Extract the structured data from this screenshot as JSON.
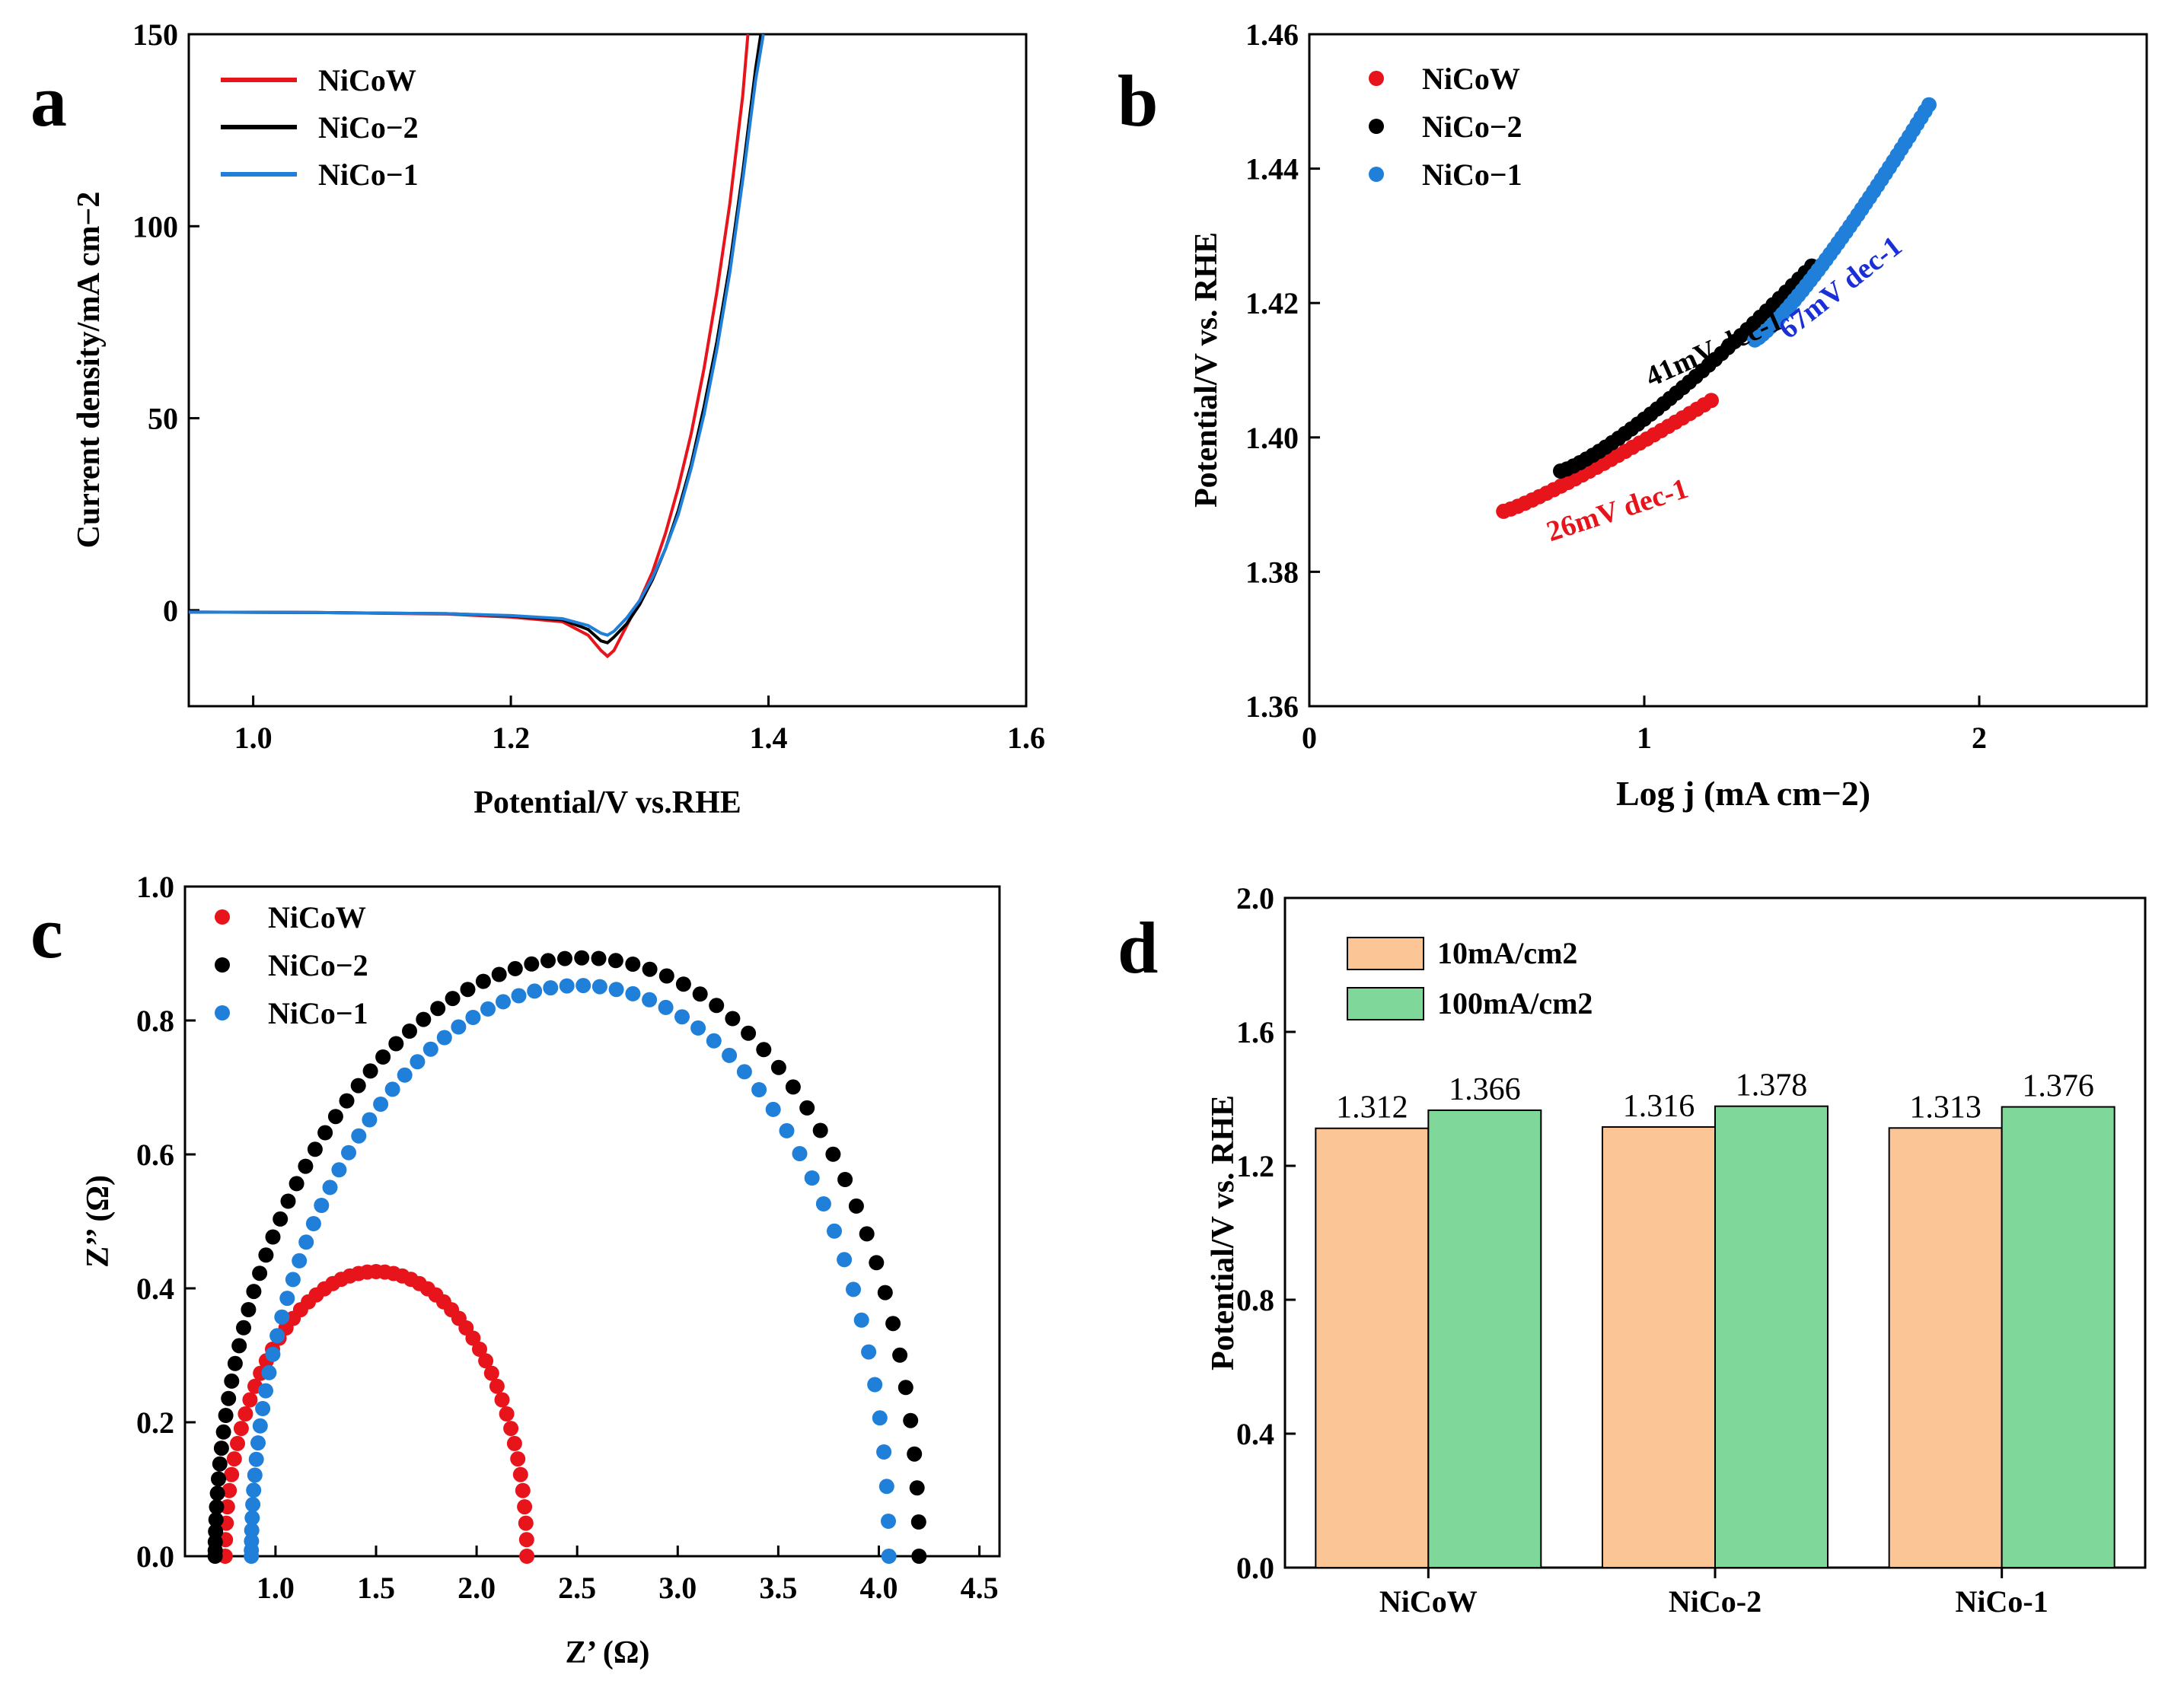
{
  "panels": {
    "a": {
      "letter": "a"
    },
    "b": {
      "letter": "b"
    },
    "c": {
      "letter": "c"
    },
    "d": {
      "letter": "d"
    }
  },
  "colors": {
    "NiCoW": "#e8141b",
    "NiCo2": "#000000",
    "NiCo1": "#1f7fd9",
    "annot_blue": "#1a2fd6",
    "bar10": "#fbc595",
    "bar100": "#80d79a"
  },
  "chart_data": [
    {
      "id": "a",
      "type": "line",
      "title": "",
      "xlabel": "Potential/V vs.RHE",
      "ylabel": "Current density/mA cm−2",
      "xlim": [
        0.95,
        1.6
      ],
      "ylim": [
        -25,
        150
      ],
      "xticks": [
        "1.0",
        "1.2",
        "1.4",
        "1.6"
      ],
      "xtick_values": [
        1.0,
        1.2,
        1.4,
        1.6
      ],
      "yticks": [
        "0",
        "50",
        "100",
        "150"
      ],
      "ytick_values": [
        0,
        50,
        100,
        150
      ],
      "legend_position": "top-left",
      "series": [
        {
          "name": "NiCoW",
          "color_key": "NiCoW",
          "x": [
            0.95,
            1.05,
            1.15,
            1.2,
            1.24,
            1.26,
            1.27,
            1.275,
            1.28,
            1.29,
            1.3,
            1.31,
            1.32,
            1.33,
            1.34,
            1.35,
            1.36,
            1.37,
            1.38,
            1.384
          ],
          "y": [
            -0.5,
            -0.6,
            -1.0,
            -1.8,
            -3.0,
            -6.5,
            -10.5,
            -12.0,
            -10.5,
            -4.0,
            2.5,
            10.0,
            20.0,
            32.0,
            46.0,
            63.0,
            83.0,
            106.0,
            134.0,
            150.0
          ]
        },
        {
          "name": "NiCo−2",
          "color_key": "NiCo2",
          "x": [
            0.95,
            1.05,
            1.15,
            1.2,
            1.24,
            1.26,
            1.27,
            1.275,
            1.28,
            1.29,
            1.3,
            1.31,
            1.32,
            1.33,
            1.34,
            1.35,
            1.36,
            1.37,
            1.38,
            1.39,
            1.394
          ],
          "y": [
            -0.5,
            -0.6,
            -0.9,
            -1.5,
            -2.5,
            -5.0,
            -8.0,
            -8.5,
            -7.0,
            -3.5,
            1.5,
            8.0,
            16.0,
            26.0,
            38.0,
            53.0,
            70.0,
            90.0,
            114.0,
            141.0,
            150.0
          ]
        },
        {
          "name": "NiCo−1",
          "color_key": "NiCo1",
          "x": [
            0.95,
            1.05,
            1.15,
            1.2,
            1.24,
            1.26,
            1.27,
            1.275,
            1.28,
            1.29,
            1.3,
            1.31,
            1.32,
            1.33,
            1.34,
            1.35,
            1.36,
            1.37,
            1.38,
            1.39,
            1.396
          ],
          "y": [
            -0.5,
            -0.6,
            -0.9,
            -1.4,
            -2.2,
            -4.0,
            -6.0,
            -6.5,
            -5.5,
            -2.0,
            2.5,
            8.5,
            16.0,
            25.0,
            37.0,
            51.0,
            68.0,
            88.0,
            112.0,
            138.0,
            150.0
          ]
        }
      ]
    },
    {
      "id": "b",
      "type": "scatter",
      "title": "",
      "xlabel": "Log j (mA cm−2)",
      "ylabel": "Potential/V vs. RHE",
      "xlim": [
        0,
        2.5
      ],
      "ylim": [
        1.36,
        1.46
      ],
      "xticks": [
        "0",
        "1",
        "2"
      ],
      "xtick_values": [
        0,
        1,
        2
      ],
      "yticks": [
        "1.36",
        "1.38",
        "1.40",
        "1.42",
        "1.44",
        "1.46"
      ],
      "ytick_values": [
        1.36,
        1.38,
        1.4,
        1.42,
        1.44,
        1.46
      ],
      "legend_position": "top-left",
      "series": [
        {
          "name": "NiCoW",
          "color_key": "NiCoW",
          "x_range": [
            0.58,
            1.2
          ],
          "y_range": [
            1.389,
            1.4055
          ],
          "n": 30,
          "curve": 1.15
        },
        {
          "name": "NiCo−2",
          "color_key": "NiCo2",
          "x_range": [
            0.75,
            1.5
          ],
          "y_range": [
            1.395,
            1.4255
          ],
          "n": 40,
          "curve": 1.25
        },
        {
          "name": "NiCo−1",
          "color_key": "NiCo1",
          "x_range": [
            1.33,
            1.85
          ],
          "y_range": [
            1.4145,
            1.4495
          ],
          "n": 45,
          "curve": 1.2
        }
      ],
      "annotations": [
        {
          "text": "41mV dec-1",
          "x": 1.02,
          "y": 1.4075,
          "color_key": "NiCo2",
          "angle": -24
        },
        {
          "text": "26mV dec-1",
          "x": 0.72,
          "y": 1.3845,
          "color_key": "NiCoW",
          "angle": -18
        },
        {
          "text": "67mV dec-1",
          "x": 1.43,
          "y": 1.4145,
          "color_key": "annot_blue",
          "angle": -38
        }
      ]
    },
    {
      "id": "c",
      "type": "scatter",
      "title": "",
      "xlabel": "Z’ (Ω)",
      "ylabel": "Z’’ (Ω)",
      "xlim": [
        0.55,
        4.6
      ],
      "ylim": [
        0,
        1.0
      ],
      "xticks": [
        "1.0",
        "1.5",
        "2.0",
        "2.5",
        "3.0",
        "3.5",
        "4.0",
        "4.5"
      ],
      "xtick_values": [
        1.0,
        1.5,
        2.0,
        2.5,
        3.0,
        3.5,
        4.0,
        4.5
      ],
      "yticks": [
        "0.0",
        "0.2",
        "0.4",
        "0.6",
        "0.8",
        "1.0"
      ],
      "ytick_values": [
        0,
        0.2,
        0.4,
        0.6,
        0.8,
        1.0
      ],
      "legend_position": "top-left",
      "series": [
        {
          "name": "NiCoW",
          "color_key": "NiCoW",
          "x_start": 0.75,
          "x_end": 2.25,
          "peak": 0.425,
          "n": 55,
          "skew": 1.0,
          "bulge": 0.0
        },
        {
          "name": "NiCo−2",
          "color_key": "NiCo2",
          "x_start": 0.7,
          "x_end": 4.2,
          "peak": 0.893,
          "n": 75,
          "skew": 1.6,
          "bulge": 0.06
        },
        {
          "name": "NiCo−1",
          "color_key": "NiCo1",
          "x_start": 0.88,
          "x_end": 4.05,
          "peak": 0.852,
          "n": 70,
          "skew": 1.7,
          "bulge": 0.04
        }
      ]
    },
    {
      "id": "d",
      "type": "bar",
      "title": "",
      "xlabel": "",
      "ylabel": "Potential/V vs. RHE",
      "ylim": [
        0,
        2.0
      ],
      "yticks": [
        "0.0",
        "0.4",
        "0.8",
        "1.2",
        "1.6",
        "2.0"
      ],
      "ytick_values": [
        0,
        0.4,
        0.8,
        1.2,
        1.6,
        2.0
      ],
      "categories": [
        "NiCoW",
        "NiCo-2",
        "NiCo-1"
      ],
      "legend_position": "top-left",
      "series": [
        {
          "name": "10mA/cm2",
          "color_key": "bar10",
          "values": [
            1.312,
            1.316,
            1.313
          ],
          "labels": [
            "1.312",
            "1.316",
            "1.313"
          ]
        },
        {
          "name": "100mA/cm2",
          "color_key": "bar100",
          "values": [
            1.366,
            1.378,
            1.376
          ],
          "labels": [
            "1.366",
            "1.378",
            "1.376"
          ]
        }
      ]
    }
  ]
}
